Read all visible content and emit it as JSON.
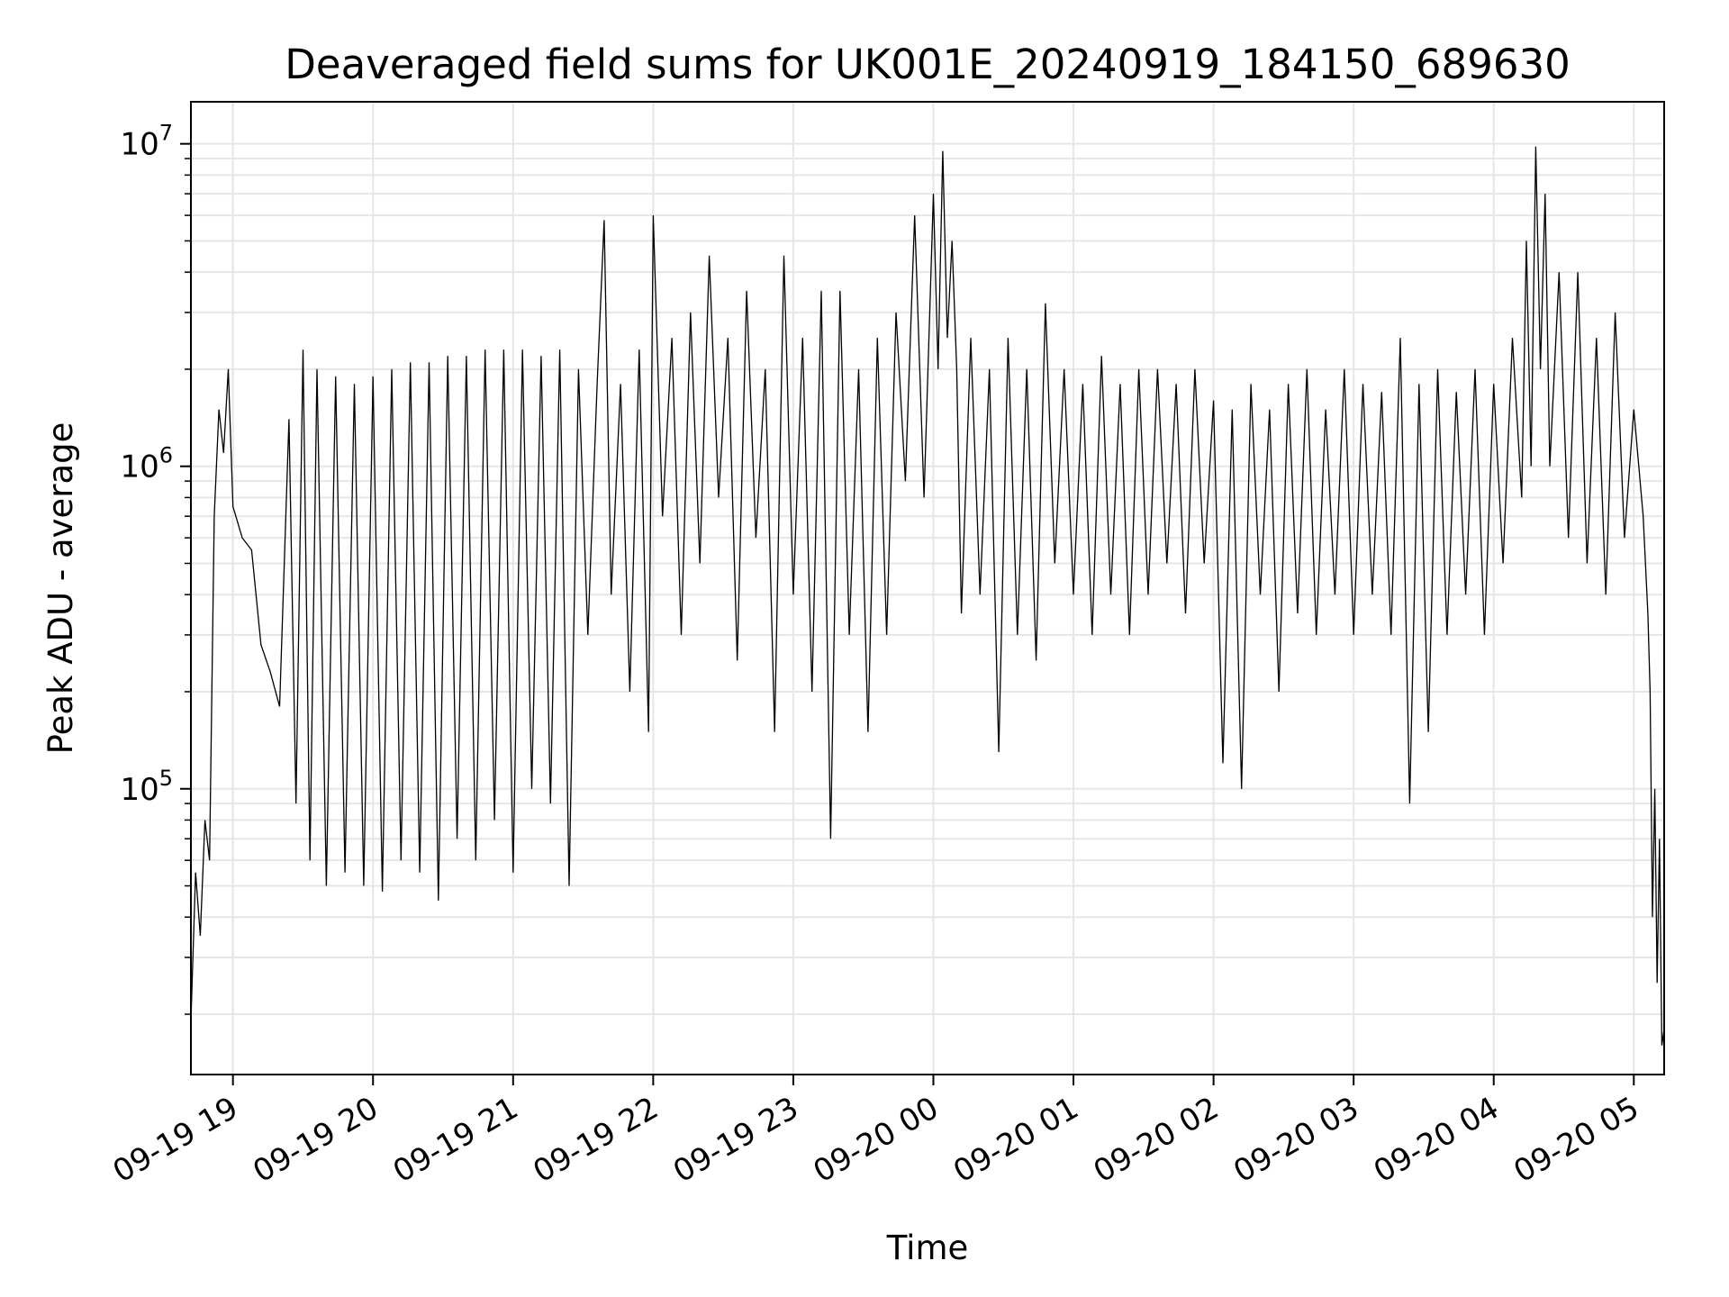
{
  "chart_data": {
    "type": "line",
    "title": "Deaveraged field sums for UK001E_20240919_184150_689630",
    "xlabel": "Time",
    "ylabel": "Peak ADU - average",
    "x_axis": {
      "type": "time",
      "range": [
        "2024-09-19 18:42",
        "2024-09-20 05:13"
      ],
      "ticks": [
        "2024-09-19 19:00",
        "2024-09-19 20:00",
        "2024-09-19 21:00",
        "2024-09-19 22:00",
        "2024-09-19 23:00",
        "2024-09-20 00:00",
        "2024-09-20 01:00",
        "2024-09-20 02:00",
        "2024-09-20 03:00",
        "2024-09-20 04:00",
        "2024-09-20 05:00"
      ],
      "tick_labels": [
        "09-19 19",
        "09-19 20",
        "09-19 21",
        "09-19 22",
        "09-19 23",
        "09-20 00",
        "09-20 01",
        "09-20 02",
        "09-20 03",
        "09-20 04",
        "09-20 05"
      ],
      "tick_rotation": 30
    },
    "y_axis": {
      "scale": "log",
      "range": [
        13000,
        13500000
      ],
      "ticks": [
        100000,
        1000000,
        10000000
      ],
      "tick_labels": [
        {
          "base": "10",
          "exp": "5"
        },
        {
          "base": "10",
          "exp": "6"
        },
        {
          "base": "10",
          "exp": "7"
        }
      ]
    },
    "grid": true,
    "series": [
      {
        "color": "#000000",
        "points": [
          [
            "2024-09-19 18:42",
            19000
          ],
          [
            "2024-09-19 18:44",
            55000
          ],
          [
            "2024-09-19 18:46",
            35000
          ],
          [
            "2024-09-19 18:48",
            80000
          ],
          [
            "2024-09-19 18:50",
            60000
          ],
          [
            "2024-09-19 18:52",
            700000
          ],
          [
            "2024-09-19 18:54",
            1500000
          ],
          [
            "2024-09-19 18:56",
            1100000
          ],
          [
            "2024-09-19 18:58",
            2000000
          ],
          [
            "2024-09-19 19:00",
            750000
          ],
          [
            "2024-09-19 19:04",
            600000
          ],
          [
            "2024-09-19 19:08",
            550000
          ],
          [
            "2024-09-19 19:12",
            280000
          ],
          [
            "2024-09-19 19:16",
            230000
          ],
          [
            "2024-09-19 19:20",
            180000
          ],
          [
            "2024-09-19 19:24",
            1400000
          ],
          [
            "2024-09-19 19:27",
            90000
          ],
          [
            "2024-09-19 19:30",
            2300000
          ],
          [
            "2024-09-19 19:33",
            60000
          ],
          [
            "2024-09-19 19:36",
            2000000
          ],
          [
            "2024-09-19 19:40",
            50000
          ],
          [
            "2024-09-19 19:44",
            1900000
          ],
          [
            "2024-09-19 19:48",
            55000
          ],
          [
            "2024-09-19 19:52",
            1800000
          ],
          [
            "2024-09-19 19:56",
            50000
          ],
          [
            "2024-09-19 20:00",
            1900000
          ],
          [
            "2024-09-19 20:04",
            48000
          ],
          [
            "2024-09-19 20:08",
            2000000
          ],
          [
            "2024-09-19 20:12",
            60000
          ],
          [
            "2024-09-19 20:16",
            2100000
          ],
          [
            "2024-09-19 20:20",
            55000
          ],
          [
            "2024-09-19 20:24",
            2100000
          ],
          [
            "2024-09-19 20:28",
            45000
          ],
          [
            "2024-09-19 20:32",
            2200000
          ],
          [
            "2024-09-19 20:36",
            70000
          ],
          [
            "2024-09-19 20:40",
            2200000
          ],
          [
            "2024-09-19 20:44",
            60000
          ],
          [
            "2024-09-19 20:48",
            2300000
          ],
          [
            "2024-09-19 20:52",
            80000
          ],
          [
            "2024-09-19 20:56",
            2300000
          ],
          [
            "2024-09-19 21:00",
            55000
          ],
          [
            "2024-09-19 21:04",
            2300000
          ],
          [
            "2024-09-19 21:08",
            100000
          ],
          [
            "2024-09-19 21:12",
            2200000
          ],
          [
            "2024-09-19 21:16",
            90000
          ],
          [
            "2024-09-19 21:20",
            2300000
          ],
          [
            "2024-09-19 21:24",
            50000
          ],
          [
            "2024-09-19 21:28",
            2000000
          ],
          [
            "2024-09-19 21:32",
            300000
          ],
          [
            "2024-09-19 21:36",
            1800000
          ],
          [
            "2024-09-19 21:39",
            5800000
          ],
          [
            "2024-09-19 21:42",
            400000
          ],
          [
            "2024-09-19 21:46",
            1800000
          ],
          [
            "2024-09-19 21:50",
            200000
          ],
          [
            "2024-09-19 21:54",
            2300000
          ],
          [
            "2024-09-19 21:58",
            150000
          ],
          [
            "2024-09-19 22:00",
            6000000
          ],
          [
            "2024-09-19 22:04",
            700000
          ],
          [
            "2024-09-19 22:08",
            2500000
          ],
          [
            "2024-09-19 22:12",
            300000
          ],
          [
            "2024-09-19 22:16",
            3000000
          ],
          [
            "2024-09-19 22:20",
            500000
          ],
          [
            "2024-09-19 22:24",
            4500000
          ],
          [
            "2024-09-19 22:28",
            800000
          ],
          [
            "2024-09-19 22:32",
            2500000
          ],
          [
            "2024-09-19 22:36",
            250000
          ],
          [
            "2024-09-19 22:40",
            3500000
          ],
          [
            "2024-09-19 22:44",
            600000
          ],
          [
            "2024-09-19 22:48",
            2000000
          ],
          [
            "2024-09-19 22:52",
            150000
          ],
          [
            "2024-09-19 22:56",
            4500000
          ],
          [
            "2024-09-19 23:00",
            400000
          ],
          [
            "2024-09-19 23:04",
            2500000
          ],
          [
            "2024-09-19 23:08",
            200000
          ],
          [
            "2024-09-19 23:12",
            3500000
          ],
          [
            "2024-09-19 23:16",
            70000
          ],
          [
            "2024-09-19 23:20",
            3500000
          ],
          [
            "2024-09-19 23:24",
            300000
          ],
          [
            "2024-09-19 23:28",
            2000000
          ],
          [
            "2024-09-19 23:32",
            150000
          ],
          [
            "2024-09-19 23:36",
            2500000
          ],
          [
            "2024-09-19 23:40",
            300000
          ],
          [
            "2024-09-19 23:44",
            3000000
          ],
          [
            "2024-09-19 23:48",
            900000
          ],
          [
            "2024-09-19 23:52",
            6000000
          ],
          [
            "2024-09-19 23:56",
            800000
          ],
          [
            "2024-09-20 00:00",
            7000000
          ],
          [
            "2024-09-20 00:02",
            2000000
          ],
          [
            "2024-09-20 00:04",
            9500000
          ],
          [
            "2024-09-20 00:06",
            2500000
          ],
          [
            "2024-09-20 00:08",
            5000000
          ],
          [
            "2024-09-20 00:10",
            2000000
          ],
          [
            "2024-09-20 00:12",
            350000
          ],
          [
            "2024-09-20 00:16",
            2500000
          ],
          [
            "2024-09-20 00:20",
            400000
          ],
          [
            "2024-09-20 00:24",
            2000000
          ],
          [
            "2024-09-20 00:28",
            130000
          ],
          [
            "2024-09-20 00:32",
            2500000
          ],
          [
            "2024-09-20 00:36",
            300000
          ],
          [
            "2024-09-20 00:40",
            2000000
          ],
          [
            "2024-09-20 00:44",
            250000
          ],
          [
            "2024-09-20 00:48",
            3200000
          ],
          [
            "2024-09-20 00:52",
            500000
          ],
          [
            "2024-09-20 00:56",
            2000000
          ],
          [
            "2024-09-20 01:00",
            400000
          ],
          [
            "2024-09-20 01:04",
            1800000
          ],
          [
            "2024-09-20 01:08",
            300000
          ],
          [
            "2024-09-20 01:12",
            2200000
          ],
          [
            "2024-09-20 01:16",
            400000
          ],
          [
            "2024-09-20 01:20",
            1800000
          ],
          [
            "2024-09-20 01:24",
            300000
          ],
          [
            "2024-09-20 01:28",
            2000000
          ],
          [
            "2024-09-20 01:32",
            400000
          ],
          [
            "2024-09-20 01:36",
            2000000
          ],
          [
            "2024-09-20 01:40",
            500000
          ],
          [
            "2024-09-20 01:44",
            1800000
          ],
          [
            "2024-09-20 01:48",
            350000
          ],
          [
            "2024-09-20 01:52",
            2000000
          ],
          [
            "2024-09-20 01:56",
            500000
          ],
          [
            "2024-09-20 02:00",
            1600000
          ],
          [
            "2024-09-20 02:04",
            120000
          ],
          [
            "2024-09-20 02:08",
            1500000
          ],
          [
            "2024-09-20 02:12",
            100000
          ],
          [
            "2024-09-20 02:16",
            1800000
          ],
          [
            "2024-09-20 02:20",
            400000
          ],
          [
            "2024-09-20 02:24",
            1500000
          ],
          [
            "2024-09-20 02:28",
            200000
          ],
          [
            "2024-09-20 02:32",
            1800000
          ],
          [
            "2024-09-20 02:36",
            350000
          ],
          [
            "2024-09-20 02:40",
            2000000
          ],
          [
            "2024-09-20 02:44",
            300000
          ],
          [
            "2024-09-20 02:48",
            1500000
          ],
          [
            "2024-09-20 02:52",
            400000
          ],
          [
            "2024-09-20 02:56",
            2000000
          ],
          [
            "2024-09-20 03:00",
            300000
          ],
          [
            "2024-09-20 03:04",
            1800000
          ],
          [
            "2024-09-20 03:08",
            400000
          ],
          [
            "2024-09-20 03:12",
            1700000
          ],
          [
            "2024-09-20 03:16",
            300000
          ],
          [
            "2024-09-20 03:20",
            2500000
          ],
          [
            "2024-09-20 03:24",
            90000
          ],
          [
            "2024-09-20 03:28",
            1800000
          ],
          [
            "2024-09-20 03:32",
            150000
          ],
          [
            "2024-09-20 03:36",
            2000000
          ],
          [
            "2024-09-20 03:40",
            300000
          ],
          [
            "2024-09-20 03:44",
            1700000
          ],
          [
            "2024-09-20 03:48",
            400000
          ],
          [
            "2024-09-20 03:52",
            2000000
          ],
          [
            "2024-09-20 03:56",
            300000
          ],
          [
            "2024-09-20 04:00",
            1800000
          ],
          [
            "2024-09-20 04:04",
            500000
          ],
          [
            "2024-09-20 04:08",
            2500000
          ],
          [
            "2024-09-20 04:12",
            800000
          ],
          [
            "2024-09-20 04:14",
            5000000
          ],
          [
            "2024-09-20 04:16",
            1000000
          ],
          [
            "2024-09-20 04:18",
            9800000
          ],
          [
            "2024-09-20 04:20",
            2000000
          ],
          [
            "2024-09-20 04:22",
            7000000
          ],
          [
            "2024-09-20 04:24",
            1000000
          ],
          [
            "2024-09-20 04:28",
            4000000
          ],
          [
            "2024-09-20 04:32",
            600000
          ],
          [
            "2024-09-20 04:36",
            4000000
          ],
          [
            "2024-09-20 04:40",
            500000
          ],
          [
            "2024-09-20 04:44",
            2500000
          ],
          [
            "2024-09-20 04:48",
            400000
          ],
          [
            "2024-09-20 04:52",
            3000000
          ],
          [
            "2024-09-20 04:56",
            600000
          ],
          [
            "2024-09-20 05:00",
            1500000
          ],
          [
            "2024-09-20 05:04",
            700000
          ],
          [
            "2024-09-20 05:06",
            350000
          ],
          [
            "2024-09-20 05:07",
            200000
          ],
          [
            "2024-09-20 05:08",
            40000
          ],
          [
            "2024-09-20 05:09",
            100000
          ],
          [
            "2024-09-20 05:10",
            25000
          ],
          [
            "2024-09-20 05:11",
            70000
          ],
          [
            "2024-09-20 05:12",
            16000
          ],
          [
            "2024-09-20 05:13",
            18000
          ]
        ]
      }
    ]
  }
}
